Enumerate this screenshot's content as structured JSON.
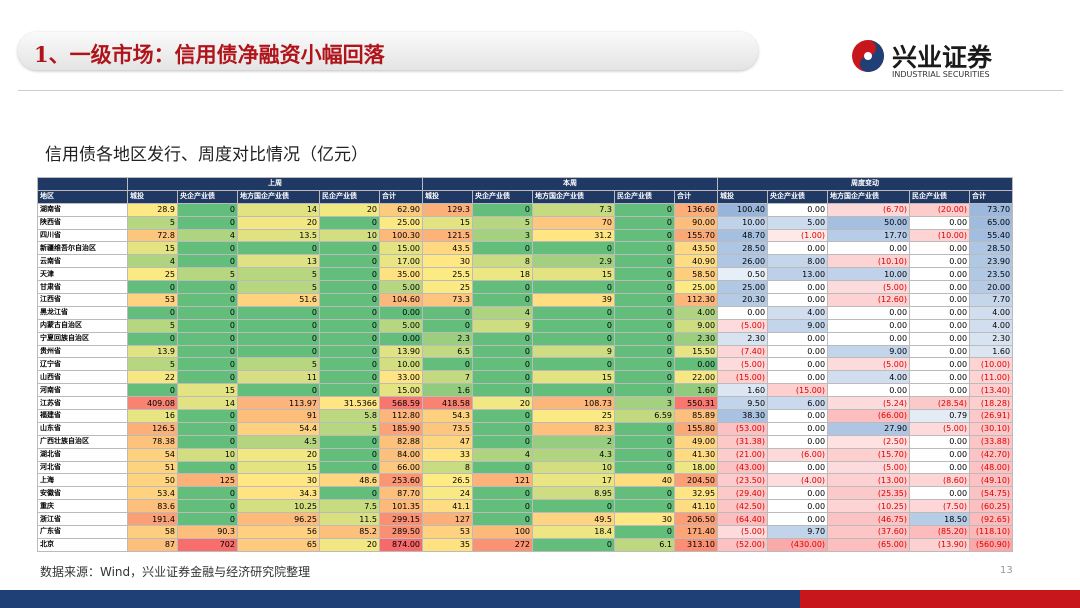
{
  "header": {
    "title": "1、一级市场：信用债净融资小幅回落",
    "logo_text": "兴业证券",
    "logo_subtext": "INDUSTRIAL SECURITIES"
  },
  "subtitle": "信用债各地区发行、周度对比情况（亿元）",
  "table": {
    "region_header": "地区",
    "groups": [
      "上周",
      "本周",
      "周度变动"
    ],
    "columns": [
      "城投",
      "央企产业债",
      "地方国企产业债",
      "民企产业债",
      "合计"
    ],
    "rows": [
      {
        "region": "湖南省",
        "cells": [
          "28.9",
          "0",
          "14",
          "20",
          "62.90",
          "129.3",
          "0",
          "7.3",
          "0",
          "136.60",
          "100.40",
          "0.00",
          "(6.70)",
          "(20.00)",
          "73.70"
        ]
      },
      {
        "region": "陕西省",
        "cells": [
          "5",
          "0",
          "20",
          "0",
          "25.00",
          "15",
          "5",
          "70",
          "0",
          "90.00",
          "10.00",
          "5.00",
          "50.00",
          "0.00",
          "65.00"
        ]
      },
      {
        "region": "四川省",
        "cells": [
          "72.8",
          "4",
          "13.5",
          "10",
          "100.30",
          "121.5",
          "3",
          "31.2",
          "0",
          "155.70",
          "48.70",
          "(1.00)",
          "17.70",
          "(10.00)",
          "55.40"
        ]
      },
      {
        "region": "新疆维吾尔自治区",
        "cells": [
          "15",
          "0",
          "0",
          "0",
          "15.00",
          "43.5",
          "0",
          "0",
          "0",
          "43.50",
          "28.50",
          "0.00",
          "0.00",
          "0.00",
          "28.50"
        ]
      },
      {
        "region": "云南省",
        "cells": [
          "4",
          "0",
          "13",
          "0",
          "17.00",
          "30",
          "8",
          "2.9",
          "0",
          "40.90",
          "26.00",
          "8.00",
          "(10.10)",
          "0.00",
          "23.90"
        ]
      },
      {
        "region": "天津",
        "cells": [
          "25",
          "5",
          "5",
          "0",
          "35.00",
          "25.5",
          "18",
          "15",
          "0",
          "58.50",
          "0.50",
          "13.00",
          "10.00",
          "0.00",
          "23.50"
        ]
      },
      {
        "region": "甘肃省",
        "cells": [
          "0",
          "0",
          "5",
          "0",
          "5.00",
          "25",
          "0",
          "0",
          "0",
          "25.00",
          "25.00",
          "0.00",
          "(5.00)",
          "0.00",
          "20.00"
        ]
      },
      {
        "region": "江西省",
        "cells": [
          "53",
          "0",
          "51.6",
          "0",
          "104.60",
          "73.3",
          "0",
          "39",
          "0",
          "112.30",
          "20.30",
          "0.00",
          "(12.60)",
          "0.00",
          "7.70"
        ]
      },
      {
        "region": "黑龙江省",
        "cells": [
          "0",
          "0",
          "0",
          "0",
          "0.00",
          "0",
          "4",
          "0",
          "0",
          "4.00",
          "0.00",
          "4.00",
          "0.00",
          "0.00",
          "4.00"
        ]
      },
      {
        "region": "内蒙古自治区",
        "cells": [
          "5",
          "0",
          "0",
          "0",
          "5.00",
          "0",
          "9",
          "0",
          "0",
          "9.00",
          "(5.00)",
          "9.00",
          "0.00",
          "0.00",
          "4.00"
        ]
      },
      {
        "region": "宁夏回族自治区",
        "cells": [
          "0",
          "0",
          "0",
          "0",
          "0.00",
          "2.3",
          "0",
          "0",
          "0",
          "2.30",
          "2.30",
          "0.00",
          "0.00",
          "0.00",
          "2.30"
        ]
      },
      {
        "region": "贵州省",
        "cells": [
          "13.9",
          "0",
          "0",
          "0",
          "13.90",
          "6.5",
          "0",
          "9",
          "0",
          "15.50",
          "(7.40)",
          "0.00",
          "9.00",
          "0.00",
          "1.60"
        ]
      },
      {
        "region": "辽宁省",
        "cells": [
          "5",
          "0",
          "5",
          "0",
          "10.00",
          "0",
          "0",
          "0",
          "0",
          "0.00",
          "(5.00)",
          "0.00",
          "(5.00)",
          "0.00",
          "(10.00)"
        ]
      },
      {
        "region": "山西省",
        "cells": [
          "22",
          "0",
          "11",
          "0",
          "33.00",
          "7",
          "0",
          "15",
          "0",
          "22.00",
          "(15.00)",
          "0.00",
          "4.00",
          "0.00",
          "(11.00)"
        ]
      },
      {
        "region": "河南省",
        "cells": [
          "0",
          "15",
          "0",
          "0",
          "15.00",
          "1.6",
          "0",
          "0",
          "0",
          "1.60",
          "1.60",
          "(15.00)",
          "0.00",
          "0.00",
          "(13.40)"
        ]
      },
      {
        "region": "江苏省",
        "cells": [
          "409.08",
          "14",
          "113.97",
          "31.5366",
          "568.59",
          "418.58",
          "20",
          "108.73",
          "3",
          "550.31",
          "9.50",
          "6.00",
          "(5.24)",
          "(28.54)",
          "(18.28)"
        ]
      },
      {
        "region": "福建省",
        "cells": [
          "16",
          "0",
          "91",
          "5.8",
          "112.80",
          "54.3",
          "0",
          "25",
          "6.59",
          "85.89",
          "38.30",
          "0.00",
          "(66.00)",
          "0.79",
          "(26.91)"
        ]
      },
      {
        "region": "山东省",
        "cells": [
          "126.5",
          "0",
          "54.4",
          "5",
          "185.90",
          "73.5",
          "0",
          "82.3",
          "0",
          "155.80",
          "(53.00)",
          "0.00",
          "27.90",
          "(5.00)",
          "(30.10)"
        ]
      },
      {
        "region": "广西壮族自治区",
        "cells": [
          "78.38",
          "0",
          "4.5",
          "0",
          "82.88",
          "47",
          "0",
          "2",
          "0",
          "49.00",
          "(31.38)",
          "0.00",
          "(2.50)",
          "0.00",
          "(33.88)"
        ]
      },
      {
        "region": "湖北省",
        "cells": [
          "54",
          "10",
          "20",
          "0",
          "84.00",
          "33",
          "4",
          "4.3",
          "0",
          "41.30",
          "(21.00)",
          "(6.00)",
          "(15.70)",
          "0.00",
          "(42.70)"
        ]
      },
      {
        "region": "河北省",
        "cells": [
          "51",
          "0",
          "15",
          "0",
          "66.00",
          "8",
          "0",
          "10",
          "0",
          "18.00",
          "(43.00)",
          "0.00",
          "(5.00)",
          "0.00",
          "(48.00)"
        ]
      },
      {
        "region": "上海",
        "cells": [
          "50",
          "125",
          "30",
          "48.6",
          "253.60",
          "26.5",
          "121",
          "17",
          "40",
          "204.50",
          "(23.50)",
          "(4.00)",
          "(13.00)",
          "(8.60)",
          "(49.10)"
        ]
      },
      {
        "region": "安徽省",
        "cells": [
          "53.4",
          "0",
          "34.3",
          "0",
          "87.70",
          "24",
          "0",
          "8.95",
          "0",
          "32.95",
          "(29.40)",
          "0.00",
          "(25.35)",
          "0.00",
          "(54.75)"
        ]
      },
      {
        "region": "重庆",
        "cells": [
          "83.6",
          "0",
          "10.25",
          "7.5",
          "101.35",
          "41.1",
          "0",
          "0",
          "0",
          "41.10",
          "(42.50)",
          "0.00",
          "(10.25)",
          "(7.50)",
          "(60.25)"
        ]
      },
      {
        "region": "浙江省",
        "cells": [
          "191.4",
          "0",
          "96.25",
          "11.5",
          "299.15",
          "127",
          "0",
          "49.5",
          "30",
          "206.50",
          "(64.40)",
          "0.00",
          "(46.75)",
          "18.50",
          "(92.65)"
        ]
      },
      {
        "region": "广东省",
        "cells": [
          "58",
          "90.3",
          "56",
          "85.2",
          "289.50",
          "53",
          "100",
          "18.4",
          "0",
          "171.40",
          "(5.00)",
          "9.70",
          "(37.60)",
          "(85.20)",
          "(118.10)"
        ]
      },
      {
        "region": "北京",
        "cells": [
          "87",
          "702",
          "65",
          "20",
          "874.00",
          "35",
          "272",
          "0",
          "6.1",
          "313.10",
          "(52.00)",
          "(430.00)",
          "(65.00)",
          "(13.90)",
          "(560.90)"
        ]
      }
    ]
  },
  "footer": {
    "source": "数据来源：Wind，兴业证券金融与经济研究院整理",
    "page": "13"
  }
}
